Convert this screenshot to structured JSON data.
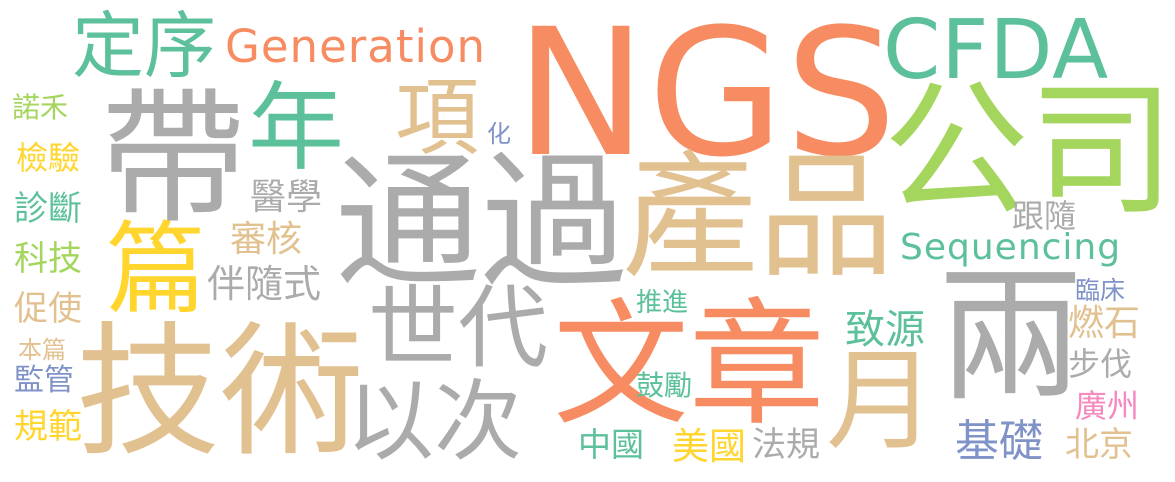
{
  "words": [
    {
      "text": "NGS",
      "color": "#F78C62"
    },
    {
      "text": "通過",
      "color": "#ABABAB"
    },
    {
      "text": "產品",
      "color": "#E2C191"
    },
    {
      "text": "文章",
      "color": "#F78C62"
    },
    {
      "text": "技術",
      "color": "#E2C191"
    },
    {
      "text": "帶",
      "color": "#ABABAB"
    },
    {
      "text": "公司",
      "color": "#A4D65E"
    },
    {
      "text": "CFDA",
      "color": "#5CC19A"
    },
    {
      "text": "兩",
      "color": "#ABABAB"
    },
    {
      "text": "世代",
      "color": "#ABABAB"
    },
    {
      "text": "以次",
      "color": "#ABABAB"
    },
    {
      "text": "年",
      "color": "#5CC19A"
    },
    {
      "text": "月",
      "color": "#E2C191"
    },
    {
      "text": "篇",
      "color": "#FFD52E"
    },
    {
      "text": "項",
      "color": "#E2C191"
    },
    {
      "text": "定序",
      "color": "#5CC19A"
    },
    {
      "text": "Generation",
      "color": "#F78C62"
    },
    {
      "text": "Sequencing",
      "color": "#5CC19A"
    },
    {
      "text": "醫學",
      "color": "#ABABAB"
    },
    {
      "text": "審核",
      "color": "#E2C191"
    },
    {
      "text": "伴隨式",
      "color": "#ABABAB"
    },
    {
      "text": "化",
      "color": "#7F93C8"
    },
    {
      "text": "跟隨",
      "color": "#ABABAB"
    },
    {
      "text": "推進",
      "color": "#5CC19A"
    },
    {
      "text": "致源",
      "color": "#5CC19A"
    },
    {
      "text": "燃石",
      "color": "#E2C191"
    },
    {
      "text": "步伐",
      "color": "#ABABAB"
    },
    {
      "text": "臨床",
      "color": "#7F93C8"
    },
    {
      "text": "廣州",
      "color": "#F589C0"
    },
    {
      "text": "北京",
      "color": "#E2C191"
    },
    {
      "text": "基礎",
      "color": "#7F93C8"
    },
    {
      "text": "鼓勵",
      "color": "#5CC19A"
    },
    {
      "text": "中國",
      "color": "#5CC19A"
    },
    {
      "text": "美國",
      "color": "#FFD52E"
    },
    {
      "text": "法規",
      "color": "#ABABAB"
    },
    {
      "text": "諾禾",
      "color": "#A4D65E"
    },
    {
      "text": "檢驗",
      "color": "#FFD52E"
    },
    {
      "text": "診斷",
      "color": "#5CC19A"
    },
    {
      "text": "科技",
      "color": "#A4D65E"
    },
    {
      "text": "促使",
      "color": "#E2C191"
    },
    {
      "text": "本篇",
      "color": "#E2C191"
    },
    {
      "text": "監管",
      "color": "#7F93C8"
    },
    {
      "text": "規範",
      "color": "#FFD52E"
    }
  ]
}
